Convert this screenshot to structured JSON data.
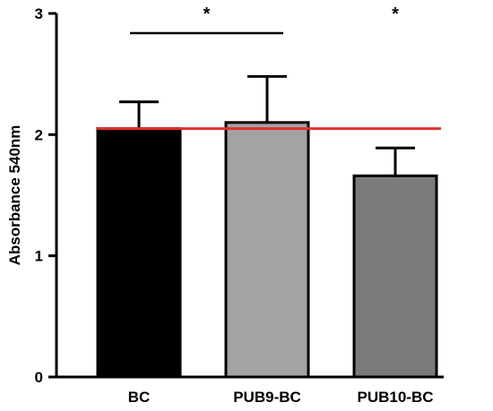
{
  "chart_data": {
    "type": "bar",
    "title": "",
    "xlabel": "",
    "ylabel": "Absorbance 540nm",
    "ylim": [
      0,
      3
    ],
    "yticks": [
      "0",
      "1",
      "2",
      "3"
    ],
    "categories": [
      "BC",
      "PUB9-BC",
      "PUB10-BC"
    ],
    "values": [
      2.05,
      2.1,
      1.66
    ],
    "error_upper": [
      0.22,
      0.38,
      0.23
    ],
    "bar_colors": [
      "#000000",
      "#a3a3a6",
      "#7b7b7b"
    ],
    "reference_line": {
      "value": 2.05,
      "color": "#e03030"
    },
    "grid": false,
    "significance": [
      {
        "label": "*",
        "from": 0,
        "to": 1
      },
      {
        "label": "*",
        "over": 2
      }
    ]
  }
}
